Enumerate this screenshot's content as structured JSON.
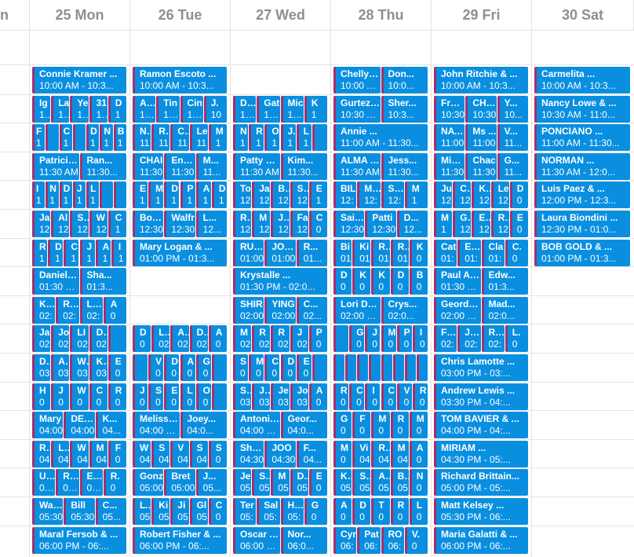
{
  "header": {
    "days": [
      "n",
      "25 Mon",
      "26 Tue",
      "27 Wed",
      "28 Thu",
      "29 Fri",
      "30 Sat"
    ]
  },
  "theme": {
    "event_bg": "#0a8fe0",
    "event_stripe": "#a3306c",
    "header_text": "#8a8f98",
    "grid": "#e2e4e8"
  },
  "columns": [
    [
      [
        [
          "Connie Kramer ...",
          "10:00 AM - 10:3..."
        ]
      ],
      [
        [
          "Ig",
          "10:"
        ],
        [
          "La",
          "10:"
        ],
        [
          "Ye",
          "10:"
        ],
        [
          "31",
          "10:"
        ],
        [
          "D",
          "1"
        ]
      ],
      [
        [
          "F",
          "1"
        ],
        [
          "",
          ""
        ],
        [
          "C",
          "1"
        ],
        [
          "",
          ""
        ],
        [
          "D",
          "1"
        ],
        [
          "N",
          "1"
        ],
        [
          "B",
          "1"
        ]
      ],
      [
        [
          "Patricia ...",
          "11:30 AM"
        ],
        [
          "Ran...",
          "11:30..."
        ]
      ],
      [
        [
          "I",
          "1"
        ],
        [
          "N",
          "1"
        ],
        [
          "D",
          "1"
        ],
        [
          "J",
          "1"
        ],
        [
          "L",
          "1"
        ],
        [
          "",
          ""
        ],
        [
          "",
          ""
        ]
      ],
      [
        [
          "Ja",
          "12"
        ],
        [
          "Al",
          "12"
        ],
        [
          "Sa",
          "12"
        ],
        [
          "W",
          "12"
        ],
        [
          "C",
          "1"
        ]
      ],
      [
        [
          "R",
          "1"
        ],
        [
          "D",
          "1"
        ],
        [
          "C",
          "1"
        ],
        [
          "J",
          "1"
        ],
        [
          "A",
          "1"
        ],
        [
          "I",
          "1"
        ]
      ],
      [
        [
          "Daniel Da...",
          "01:30 PM"
        ],
        [
          "Sha...",
          "01:3..."
        ]
      ],
      [
        [
          "Kev",
          "02:"
        ],
        [
          "Rob",
          "02:"
        ],
        [
          "LAU",
          "02:"
        ],
        [
          "A",
          "0"
        ]
      ],
      [
        [
          "Ja",
          "02"
        ],
        [
          "Jo",
          "02"
        ],
        [
          "LI",
          "02"
        ],
        [
          "DA",
          "02"
        ],
        [
          "",
          ""
        ]
      ],
      [
        [
          "Do",
          "03"
        ],
        [
          "AL",
          "03"
        ],
        [
          "Wi",
          "03"
        ],
        [
          "Ka",
          "03"
        ],
        [
          "E",
          "0"
        ]
      ],
      [
        [
          "H",
          "0"
        ],
        [
          "J",
          "0"
        ],
        [
          "W",
          "0"
        ],
        [
          "C",
          "0"
        ],
        [
          "R",
          "0"
        ]
      ],
      [
        [
          "Mary",
          "04:00"
        ],
        [
          "DENN",
          "04:00"
        ],
        [
          "K...",
          "04..."
        ]
      ],
      [
        [
          "Ro",
          "04"
        ],
        [
          "Lu",
          "04"
        ],
        [
          "W",
          "04"
        ],
        [
          "M",
          "04"
        ],
        [
          "F",
          "0"
        ]
      ],
      [
        [
          "Ulis",
          "05:0"
        ],
        [
          "Rac",
          "05:0"
        ],
        [
          "Eljo",
          "05:3"
        ],
        [
          "R.",
          "0"
        ]
      ],
      [
        [
          "Walte",
          "05:30"
        ],
        [
          "Bill",
          "05:30"
        ],
        [
          "C...",
          "05..."
        ]
      ],
      [
        [
          "Maral Fersob & ...",
          "06:00 PM - 06:..."
        ]
      ]
    ],
    [
      [
        [
          "Ramon Escoto ...",
          "10:00 AM - 10:3..."
        ]
      ],
      [
        [
          "ALC",
          "10:3"
        ],
        [
          "Tin",
          "10:3"
        ],
        [
          "Cin",
          "10:3"
        ],
        [
          "J.",
          "10"
        ]
      ],
      [
        [
          "No",
          "11"
        ],
        [
          "RA",
          "11"
        ],
        [
          "Ca",
          "11"
        ],
        [
          "Le",
          "11"
        ],
        [
          "M",
          "1"
        ]
      ],
      [
        [
          "CHAI",
          "11:30"
        ],
        [
          "Enriq",
          "11:30"
        ],
        [
          "M...",
          "11..."
        ]
      ],
      [
        [
          "E",
          "1"
        ],
        [
          "M",
          "1"
        ],
        [
          "D",
          "1"
        ],
        [
          "P",
          "1"
        ],
        [
          "A",
          "1"
        ],
        [
          "D",
          "1"
        ]
      ],
      [
        [
          "Bonn",
          "12:30"
        ],
        [
          "Walfr",
          "12:30"
        ],
        [
          "L...",
          "12..."
        ]
      ],
      [
        [
          "Mary Logan & ...",
          "01:00 PM - 01:3..."
        ]
      ],
      [],
      [],
      [
        [
          "D",
          "0"
        ],
        [
          "Lo",
          "02"
        ],
        [
          "An",
          "02"
        ],
        [
          "DA",
          "02"
        ],
        [
          "A",
          "0"
        ]
      ],
      [
        [
          "",
          ""
        ],
        [
          "V",
          "0"
        ],
        [
          "D",
          "0"
        ],
        [
          "A",
          "0"
        ],
        [
          "G",
          "0"
        ],
        [
          "",
          ""
        ]
      ],
      [
        [
          "J",
          "0"
        ],
        [
          "S",
          "0"
        ],
        [
          "E",
          "0"
        ],
        [
          "L",
          "0"
        ],
        [
          "O",
          "0"
        ],
        [
          "",
          ""
        ]
      ],
      [
        [
          "Melissa ...",
          "04:00 PM"
        ],
        [
          "Joey...",
          "04:0..."
        ]
      ],
      [
        [
          "W",
          "04"
        ],
        [
          "S",
          "04"
        ],
        [
          "V",
          "04"
        ],
        [
          "S",
          "04"
        ],
        [
          "S",
          "0"
        ]
      ],
      [
        [
          "Gonz",
          "05:00"
        ],
        [
          "Bret",
          "05:00"
        ],
        [
          "J...",
          "05..."
        ]
      ],
      [
        [
          "LY",
          "05"
        ],
        [
          "Ki",
          "05"
        ],
        [
          "Ji",
          "05"
        ],
        [
          "Gl",
          "05"
        ],
        [
          "C",
          "0"
        ]
      ],
      [
        [
          "Robert Fisher & ...",
          "06:00 PM - 06:..."
        ]
      ]
    ],
    [
      [],
      [
        [
          "Dav",
          "10:3"
        ],
        [
          "Gat",
          "10:3"
        ],
        [
          "Mic",
          "10:3"
        ],
        [
          "K",
          "1"
        ]
      ],
      [
        [
          "N",
          "1"
        ],
        [
          "R",
          "1"
        ],
        [
          "O",
          "1"
        ],
        [
          "J.",
          "1"
        ],
        [
          "L",
          "1"
        ],
        [
          "",
          ""
        ]
      ],
      [
        [
          "Patty Hu...",
          "11:30 AM"
        ],
        [
          "Kim...",
          "11:30..."
        ]
      ],
      [
        [
          "To",
          "12"
        ],
        [
          "Ja",
          "12"
        ],
        [
          "Be",
          "12"
        ],
        [
          "Su",
          "12"
        ],
        [
          "E",
          "1"
        ]
      ],
      [
        [
          "Ro",
          "12"
        ],
        [
          "M",
          "12"
        ],
        [
          "JA",
          "12"
        ],
        [
          "Fa",
          "12"
        ],
        [
          "C",
          "0"
        ]
      ],
      [
        [
          "RUEL...",
          "01:00"
        ],
        [
          "JONA...",
          "01:00"
        ],
        [
          "R...",
          "01..."
        ]
      ],
      [
        [
          "Krystalle ...",
          "01:30 PM - 02:0..."
        ]
      ],
      [
        [
          "SHIR",
          "02:00"
        ],
        [
          "YING",
          "02:00"
        ],
        [
          "C...",
          "02..."
        ]
      ],
      [
        [
          "M",
          "02"
        ],
        [
          "R",
          "02"
        ],
        [
          "R",
          "02"
        ],
        [
          "J",
          "02"
        ],
        [
          "P",
          "0"
        ]
      ],
      [
        [
          "S",
          "0"
        ],
        [
          "M",
          "0"
        ],
        [
          "C",
          "0"
        ],
        [
          "D",
          "0"
        ],
        [
          "E",
          "0"
        ],
        [
          "",
          ""
        ]
      ],
      [
        [
          "Se",
          "03"
        ],
        [
          "JU",
          "03"
        ],
        [
          "Je",
          "03"
        ],
        [
          "Jo",
          "03"
        ],
        [
          "A",
          "0"
        ]
      ],
      [
        [
          "Antonio ...",
          "04:00 PM"
        ],
        [
          "Geor...",
          "04:0..."
        ]
      ],
      [
        [
          "Sherr",
          "04:30"
        ],
        [
          "JOO",
          "04:30"
        ],
        [
          "F...",
          "04..."
        ]
      ],
      [
        [
          "Je",
          "05"
        ],
        [
          "Sc",
          "05"
        ],
        [
          "M",
          "05"
        ],
        [
          "De",
          "05"
        ],
        [
          "E",
          "0"
        ]
      ],
      [
        [
          "Ter",
          "05:"
        ],
        [
          "Sal",
          "05:"
        ],
        [
          "Hug",
          "05:"
        ],
        [
          "G",
          "0"
        ]
      ],
      [
        [
          "Oscar A...",
          "06:00 PM"
        ],
        [
          "Nor...",
          "06:0..."
        ]
      ]
    ],
    [
      [
        [
          "Chelly Z...",
          "10:00 AM"
        ],
        [
          "Don...",
          "10:0..."
        ]
      ],
      [
        [
          "Gurtez S...",
          "10:30 AM"
        ],
        [
          "Sher...",
          "10:3..."
        ]
      ],
      [
        [
          "Annie ...",
          "11:00 AM - 11:30..."
        ]
      ],
      [
        [
          "ALMA BA...",
          "11:30 AM"
        ],
        [
          "Jess...",
          "11:30..."
        ]
      ],
      [
        [
          "BIL",
          "12:"
        ],
        [
          "Mar",
          "12:"
        ],
        [
          "SER",
          "12:"
        ],
        [
          "M",
          "1"
        ]
      ],
      [
        [
          "Saido...",
          "12:30"
        ],
        [
          "Patti",
          "12:30"
        ],
        [
          "D...",
          "12..."
        ]
      ],
      [
        [
          "Bi",
          "01"
        ],
        [
          "Ki",
          "01"
        ],
        [
          "Ro",
          "01"
        ],
        [
          "Ro",
          "01"
        ],
        [
          "K",
          "0"
        ]
      ],
      [
        [
          "D",
          "0"
        ],
        [
          "K",
          "0"
        ],
        [
          "K",
          "0"
        ],
        [
          "D",
          "0"
        ],
        [
          "B",
          "0"
        ]
      ],
      [
        [
          "Lori Dodo...",
          "02:00 PM"
        ],
        [
          "Crys...",
          "02:0..."
        ]
      ],
      [
        [
          "",
          ""
        ],
        [
          "G",
          "0"
        ],
        [
          "J",
          "0"
        ],
        [
          "M",
          "0"
        ],
        [
          "P",
          "0"
        ],
        [
          "I",
          "0"
        ]
      ],
      [
        [
          "",
          ""
        ],
        [
          "",
          ""
        ],
        [
          "",
          ""
        ],
        [
          "",
          ""
        ],
        [
          "",
          ""
        ],
        [
          "",
          ""
        ],
        [
          "",
          ""
        ],
        [
          "",
          ""
        ]
      ],
      [
        [
          "R",
          "0"
        ],
        [
          "C",
          "0"
        ],
        [
          "I",
          "0"
        ],
        [
          "C",
          "0"
        ],
        [
          "V",
          "0"
        ],
        [
          "R",
          "0"
        ]
      ],
      [
        [
          "G",
          "0"
        ],
        [
          "F",
          "0"
        ],
        [
          "M",
          "0"
        ],
        [
          "R",
          "0"
        ],
        [
          "M",
          "0"
        ]
      ],
      [
        [
          "M",
          "0"
        ],
        [
          "Vi",
          "04"
        ],
        [
          "Ro",
          "04"
        ],
        [
          "M",
          "04"
        ],
        [
          "A",
          "0"
        ]
      ],
      [
        [
          "Ka",
          "05"
        ],
        [
          "Sh",
          "05"
        ],
        [
          "AL",
          "05"
        ],
        [
          "Bo",
          "05"
        ],
        [
          "N",
          "0"
        ]
      ],
      [
        [
          "A",
          "0"
        ],
        [
          "D",
          "0"
        ],
        [
          "T",
          "0"
        ],
        [
          "R",
          "0"
        ],
        [
          "L",
          "0"
        ]
      ],
      [
        [
          "Cyr",
          "06:"
        ],
        [
          "Pat",
          "06:"
        ],
        [
          "RO",
          "06:"
        ],
        [
          "V.",
          "0"
        ]
      ]
    ],
    [
      [
        [
          "John Ritchie & ...",
          "10:00 AM - 10:3..."
        ]
      ],
      [
        [
          "Frank",
          "10:30"
        ],
        [
          "CHAR",
          "10:30"
        ],
        [
          "Y...",
          "10..."
        ]
      ],
      [
        [
          "NATH",
          "11:00"
        ],
        [
          "Ms ...",
          "11:00"
        ],
        [
          "V...",
          "11..."
        ]
      ],
      [
        [
          "Michi",
          "11:30"
        ],
        [
          "Chac",
          "11:30"
        ],
        [
          "G...",
          "11..."
        ]
      ],
      [
        [
          "Ju",
          "12"
        ],
        [
          "Ch",
          "12"
        ],
        [
          "Ka",
          "12"
        ],
        [
          "Le",
          "12"
        ],
        [
          "D",
          "0"
        ]
      ],
      [
        [
          "M",
          "1"
        ],
        [
          "Ge",
          "12"
        ],
        [
          "Ed",
          "12"
        ],
        [
          "Ro",
          "12"
        ],
        [
          "E",
          "0"
        ]
      ],
      [
        [
          "Cat",
          "01:"
        ],
        [
          "EUF",
          "01:"
        ],
        [
          "Cla",
          "01:"
        ],
        [
          "C.",
          "0"
        ]
      ],
      [
        [
          "Paul Apo...",
          "01:30 PM"
        ],
        [
          "Edw...",
          "01:3..."
        ]
      ],
      [
        [
          "Georde H...",
          "02:00 PM"
        ],
        [
          "Mad...",
          "02:0..."
        ]
      ],
      [
        [
          "Fran",
          "02:"
        ],
        [
          "Joe",
          "02:"
        ],
        [
          "Rob",
          "02:"
        ],
        [
          "L.",
          "0"
        ]
      ],
      [
        [
          "Chris Lamotte ...",
          "03:00 PM - 03:..."
        ]
      ],
      [
        [
          "Andrew Lewis ...",
          "03:30 PM - 04:..."
        ]
      ],
      [
        [
          "TOM BAVIER & ...",
          "04:00 PM - 04:..."
        ]
      ],
      [
        [
          "MIRIAM ...",
          "04:30 PM - 05:..."
        ]
      ],
      [
        [
          "Richard Brittain...",
          "05:00 PM - 05:..."
        ]
      ],
      [
        [
          "Matt Kelsey ...",
          "05:30 PM - 06:..."
        ]
      ],
      [
        [
          "Maria Galatti & ...",
          "06:00 PM - 06:..."
        ]
      ]
    ],
    [
      [
        [
          "Carmelita ...",
          "10:00 AM - 10:3..."
        ]
      ],
      [
        [
          "Nancy Lowe & ...",
          "10:30 AM - 11:0..."
        ]
      ],
      [
        [
          "PONCIANO ...",
          "11:00 AM - 11:30..."
        ]
      ],
      [
        [
          "NORMAN ...",
          "11:30 AM - 12:0..."
        ]
      ],
      [
        [
          "Luis Paez & ...",
          "12:00 PM - 12:3..."
        ]
      ],
      [
        [
          "Laura Biondini ...",
          "12:30 PM - 01:0..."
        ]
      ],
      [
        [
          "BOB GOLD & ...",
          "01:00 PM - 01:3..."
        ]
      ],
      [],
      [],
      [],
      [],
      [],
      [],
      [],
      [],
      [],
      []
    ]
  ]
}
